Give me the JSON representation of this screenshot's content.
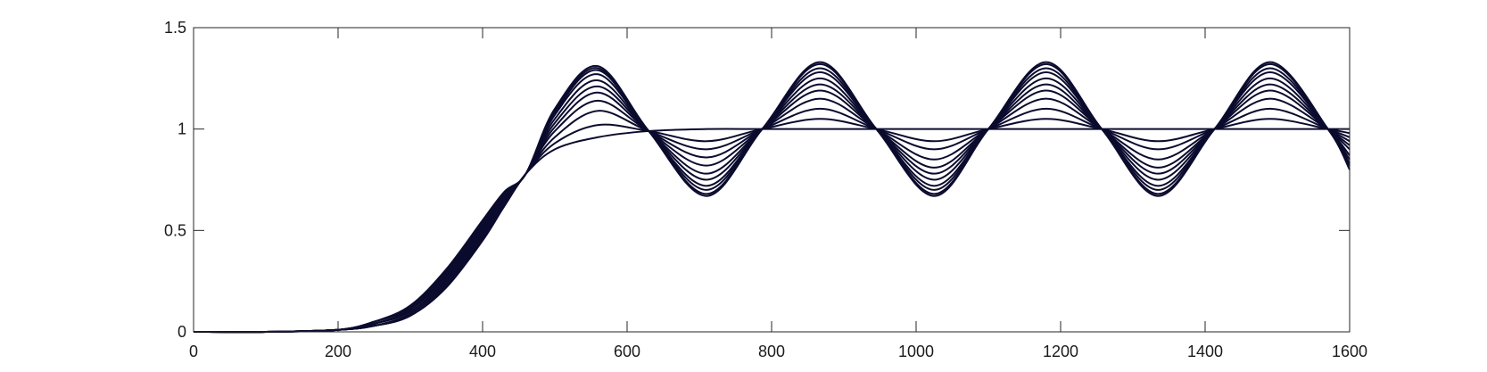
{
  "chart_data": {
    "type": "line",
    "title": "",
    "xlabel": "",
    "ylabel": "",
    "xlim": [
      0,
      1600
    ],
    "ylim": [
      0,
      1.5
    ],
    "x_ticks": [
      "0",
      "200",
      "400",
      "600",
      "800",
      "1000",
      "1200",
      "1400",
      "1600"
    ],
    "y_ticks": [
      "0",
      "0.5",
      "1",
      "1.5"
    ],
    "grid": false,
    "legend": "none",
    "line_color": "#0b0b2e",
    "x": [
      0,
      100,
      200,
      250,
      300,
      350,
      400,
      430,
      460,
      500,
      560,
      630,
      710,
      787,
      867,
      945,
      1025,
      1100,
      1180,
      1257,
      1335,
      1413,
      1490,
      1570,
      1600
    ],
    "series": [
      {
        "values": [
          0.0,
          0.0,
          0.01,
          0.03,
          0.08,
          0.22,
          0.45,
          0.62,
          0.78,
          0.9,
          0.96,
          0.99,
          1.0,
          1.0,
          1.0,
          1.0,
          1.0,
          1.0,
          1.0,
          1.0,
          1.0,
          1.0,
          1.0,
          1.0,
          1.0
        ]
      },
      {
        "values": [
          0.0,
          0.0,
          0.01,
          0.03,
          0.08,
          0.22,
          0.46,
          0.62,
          0.78,
          0.93,
          1.02,
          0.99,
          0.94,
          1.0,
          1.05,
          1.0,
          0.94,
          1.0,
          1.05,
          1.0,
          0.94,
          1.0,
          1.05,
          1.0,
          0.98
        ]
      },
      {
        "values": [
          0.0,
          0.0,
          0.01,
          0.03,
          0.08,
          0.23,
          0.47,
          0.63,
          0.78,
          0.96,
          1.09,
          0.99,
          0.9,
          1.0,
          1.1,
          1.0,
          0.9,
          1.0,
          1.1,
          1.0,
          0.9,
          1.0,
          1.1,
          1.0,
          0.96
        ]
      },
      {
        "values": [
          0.0,
          0.0,
          0.01,
          0.03,
          0.09,
          0.24,
          0.48,
          0.64,
          0.78,
          0.99,
          1.14,
          0.99,
          0.86,
          1.0,
          1.15,
          1.0,
          0.85,
          1.0,
          1.15,
          1.0,
          0.85,
          1.0,
          1.15,
          1.0,
          0.94
        ]
      },
      {
        "values": [
          0.0,
          0.0,
          0.01,
          0.03,
          0.09,
          0.25,
          0.49,
          0.65,
          0.78,
          1.01,
          1.18,
          0.99,
          0.82,
          1.0,
          1.19,
          1.0,
          0.81,
          1.0,
          1.19,
          1.0,
          0.81,
          1.0,
          1.19,
          1.0,
          0.92
        ]
      },
      {
        "values": [
          0.0,
          0.0,
          0.01,
          0.04,
          0.1,
          0.26,
          0.5,
          0.66,
          0.78,
          1.03,
          1.21,
          0.99,
          0.78,
          1.0,
          1.22,
          1.0,
          0.78,
          1.0,
          1.22,
          1.0,
          0.78,
          1.0,
          1.22,
          1.0,
          0.9
        ]
      },
      {
        "values": [
          0.0,
          0.0,
          0.01,
          0.04,
          0.11,
          0.27,
          0.51,
          0.67,
          0.78,
          1.05,
          1.24,
          0.99,
          0.75,
          1.0,
          1.25,
          1.0,
          0.75,
          1.0,
          1.25,
          1.0,
          0.75,
          1.0,
          1.25,
          1.0,
          0.87
        ]
      },
      {
        "values": [
          0.0,
          0.0,
          0.01,
          0.04,
          0.11,
          0.28,
          0.52,
          0.67,
          0.78,
          1.07,
          1.27,
          0.99,
          0.72,
          1.0,
          1.28,
          1.0,
          0.72,
          1.0,
          1.28,
          1.0,
          0.72,
          1.0,
          1.28,
          1.0,
          0.85
        ]
      },
      {
        "values": [
          0.0,
          0.0,
          0.01,
          0.05,
          0.12,
          0.29,
          0.53,
          0.68,
          0.78,
          1.08,
          1.29,
          0.99,
          0.7,
          1.0,
          1.3,
          1.0,
          0.7,
          1.0,
          1.3,
          1.0,
          0.7,
          1.0,
          1.3,
          1.0,
          0.83
        ]
      },
      {
        "values": [
          0.0,
          0.0,
          0.01,
          0.05,
          0.12,
          0.3,
          0.54,
          0.69,
          0.78,
          1.09,
          1.3,
          0.99,
          0.68,
          1.0,
          1.32,
          1.0,
          0.68,
          1.0,
          1.32,
          1.0,
          0.68,
          1.0,
          1.32,
          1.0,
          0.82
        ]
      },
      {
        "values": [
          0.0,
          0.0,
          0.01,
          0.05,
          0.13,
          0.31,
          0.55,
          0.69,
          0.78,
          1.1,
          1.31,
          0.99,
          0.67,
          1.0,
          1.33,
          1.0,
          0.67,
          1.0,
          1.33,
          1.0,
          0.67,
          1.0,
          1.33,
          1.0,
          0.8
        ]
      }
    ]
  }
}
